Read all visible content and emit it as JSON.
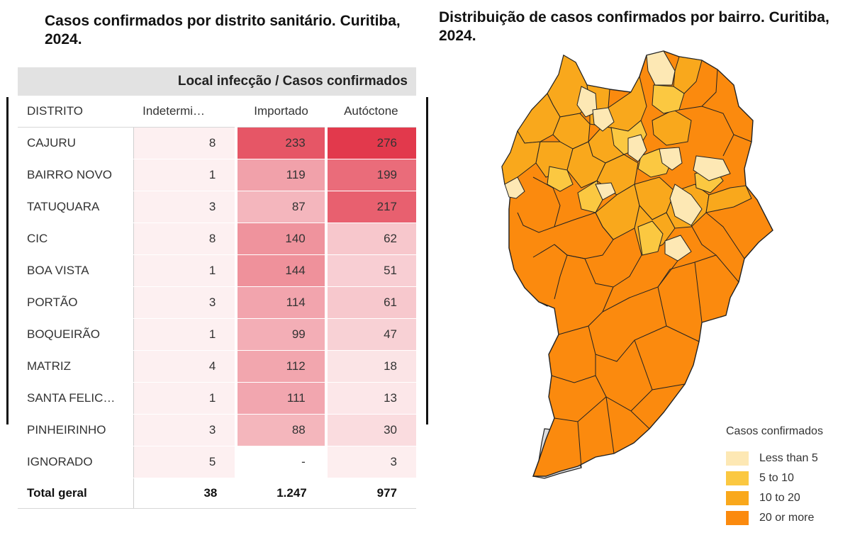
{
  "left_title": "Casos confirmados por distrito sanitário. Curitiba, 2024.",
  "right_title": "Distribuição de casos confirmados por bairro. Curitiba, 2024.",
  "table": {
    "super_header": "Local infecção / Casos confirmados",
    "columns": [
      "DISTRITO",
      "Indetermi…",
      "Importado",
      "Autóctone"
    ],
    "rows": [
      {
        "distrito": "CAJURU",
        "indeterminado": "8",
        "importado": "233",
        "autoctone": "276"
      },
      {
        "distrito": "BAIRRO NOVO",
        "indeterminado": "1",
        "importado": "119",
        "autoctone": "199"
      },
      {
        "distrito": "TATUQUARA",
        "indeterminado": "3",
        "importado": "87",
        "autoctone": "217"
      },
      {
        "distrito": "CIC",
        "indeterminado": "8",
        "importado": "140",
        "autoctone": "62"
      },
      {
        "distrito": "BOA VISTA",
        "indeterminado": "1",
        "importado": "144",
        "autoctone": "51"
      },
      {
        "distrito": "PORTÃO",
        "indeterminado": "3",
        "importado": "114",
        "autoctone": "61"
      },
      {
        "distrito": "BOQUEIRÃO",
        "indeterminado": "1",
        "importado": "99",
        "autoctone": "47"
      },
      {
        "distrito": "MATRIZ",
        "indeterminado": "4",
        "importado": "112",
        "autoctone": "18"
      },
      {
        "distrito": "SANTA FELIC…",
        "indeterminado": "1",
        "importado": "111",
        "autoctone": "13"
      },
      {
        "distrito": "PINHEIRINHO",
        "indeterminado": "3",
        "importado": "88",
        "autoctone": "30"
      },
      {
        "distrito": "IGNORADO",
        "indeterminado": "5",
        "importado": "-",
        "autoctone": "3"
      }
    ],
    "total": {
      "distrito": "Total geral",
      "indeterminado": "38",
      "importado": "1.247",
      "autoctone": "977"
    }
  },
  "heat": {
    "max_value": 276,
    "low_color": "#fdf0f1",
    "high_color": "#e2394c"
  },
  "legend": {
    "title": "Casos confirmados",
    "items": [
      {
        "label": "Less than 5",
        "color": "#fde8b4"
      },
      {
        "label": "5 to 10",
        "color": "#fbc841"
      },
      {
        "label": "10 to 20",
        "color": "#f9a81c"
      },
      {
        "label": "20 or more",
        "color": "#fb8a0e"
      }
    ],
    "no_data_color": "#dcdcdc"
  }
}
